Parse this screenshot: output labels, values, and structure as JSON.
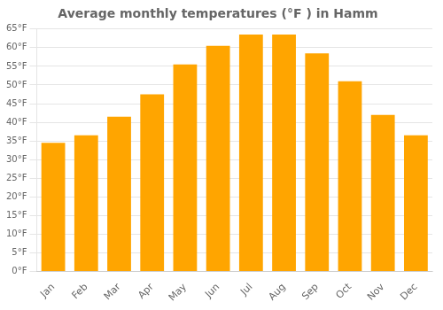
{
  "chart_data": {
    "type": "bar",
    "title": "Average monthly temperatures (°F ) in Hamm",
    "categories": [
      "Jan",
      "Feb",
      "Mar",
      "Apr",
      "May",
      "Jun",
      "Jul",
      "Aug",
      "Sep",
      "Oct",
      "Nov",
      "Dec"
    ],
    "values": [
      34.5,
      36.5,
      41.5,
      47.5,
      55.5,
      60.5,
      63.5,
      63.5,
      58.5,
      51.0,
      42.0,
      36.5
    ],
    "color": "#FFA500",
    "ylim": [
      0,
      65
    ],
    "yticks": [
      {
        "value": 0,
        "label": "0°F"
      },
      {
        "value": 5,
        "label": "5°F"
      },
      {
        "value": 10,
        "label": "10°F"
      },
      {
        "value": 15,
        "label": "15°F"
      },
      {
        "value": 20,
        "label": "20°F"
      },
      {
        "value": 25,
        "label": "25°F"
      },
      {
        "value": 30,
        "label": "30°F"
      },
      {
        "value": 35,
        "label": "35°F"
      },
      {
        "value": 40,
        "label": "40°F"
      },
      {
        "value": 45,
        "label": "45°F"
      },
      {
        "value": 50,
        "label": "50°F"
      },
      {
        "value": 55,
        "label": "55°F"
      },
      {
        "value": 60,
        "label": "60°F"
      },
      {
        "value": 65,
        "label": "65°F"
      }
    ],
    "grid": true
  }
}
